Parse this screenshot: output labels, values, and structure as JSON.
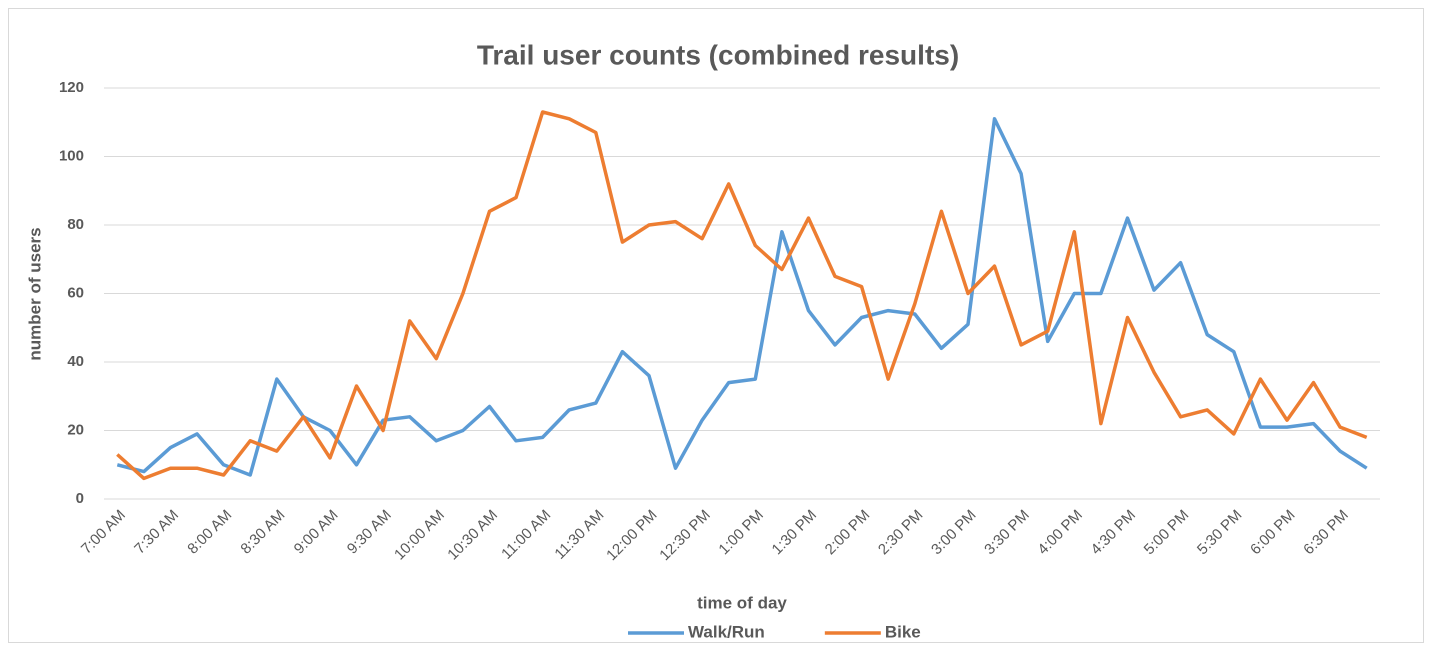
{
  "chart_data": {
    "type": "line",
    "title": "Trail user counts (combined results)",
    "x_label": "time of day",
    "y_label": "number of users",
    "categories": [
      "7:00 AM",
      null,
      "7:30 AM",
      null,
      "8:00 AM",
      null,
      "8:30 AM",
      null,
      "9:00 AM",
      null,
      "9:30 AM",
      null,
      "10:00 AM",
      null,
      "10:30 AM",
      null,
      "11:00 AM",
      null,
      "11:30 AM",
      null,
      "12:00 PM",
      null,
      "12:30 PM",
      null,
      "1:00 PM",
      null,
      "1:30 PM",
      null,
      "2:00 PM",
      null,
      "2:30 PM",
      null,
      "3:00 PM",
      null,
      "3:30 PM",
      null,
      "4:00 PM",
      null,
      "4:30 PM",
      null,
      "5:00 PM",
      null,
      "5:30 PM",
      null,
      "6:00 PM",
      null,
      "6:30 PM",
      null
    ],
    "series": [
      {
        "name": "Walk/Run",
        "color": "#5b9bd5",
        "values": [
          10,
          8,
          15,
          19,
          10,
          7,
          35,
          24,
          20,
          10,
          23,
          24,
          17,
          20,
          27,
          17,
          18,
          26,
          28,
          43,
          36,
          9,
          23,
          34,
          35,
          78,
          55,
          45,
          53,
          55,
          54,
          44,
          51,
          111,
          95,
          46,
          60,
          60,
          82,
          61,
          69,
          48,
          43,
          21,
          21,
          22,
          14,
          9
        ]
      },
      {
        "name": "Bike",
        "color": "#ed7d31",
        "values": [
          13,
          6,
          9,
          9,
          7,
          17,
          14,
          24,
          12,
          33,
          20,
          52,
          41,
          60,
          84,
          88,
          113,
          111,
          107,
          75,
          80,
          81,
          76,
          92,
          74,
          67,
          82,
          65,
          62,
          35,
          57,
          84,
          60,
          68,
          45,
          49,
          78,
          22,
          53,
          37,
          24,
          26,
          19,
          35,
          23,
          34,
          21,
          18
        ]
      }
    ],
    "ylim": [
      0,
      120
    ],
    "yticks": [
      0,
      20,
      40,
      60,
      80,
      100,
      120
    ],
    "grid": true,
    "legend": "bottom"
  }
}
